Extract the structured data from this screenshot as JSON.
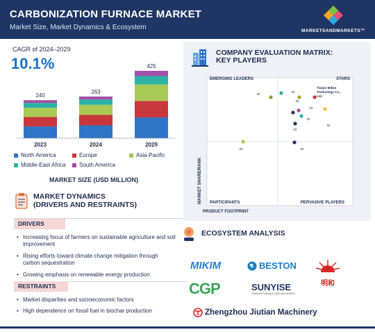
{
  "header": {
    "title": "CARBONIZATION FURNACE MARKET",
    "subtitle": "Market Size, Market Dynamics & Ecosystem",
    "logo_text": "MARKETSANDMARKETS™"
  },
  "cagr": {
    "label": "CAGR of 2024–2029",
    "value": "10.1%"
  },
  "chart_data": {
    "type": "bar",
    "stacked": true,
    "categories": [
      "2023",
      "2024",
      "2029"
    ],
    "totals": [
      240,
      263,
      425
    ],
    "series": [
      {
        "name": "North America",
        "color": "#2e75c6",
        "values": [
          74,
          81,
          131
        ]
      },
      {
        "name": "Europe",
        "color": "#c8373c",
        "values": [
          60,
          66,
          104
        ]
      },
      {
        "name": "Asia-Pacific",
        "color": "#a9c956",
        "values": [
          58,
          64,
          104
        ]
      },
      {
        "name": "Middle-East Africa",
        "color": "#2bb3a6",
        "values": [
          30,
          33,
          53
        ]
      },
      {
        "name": "South America",
        "color": "#a24fa8",
        "values": [
          18,
          19,
          33
        ]
      }
    ],
    "xlabel": "MARKET SIZE (USD MILLION)",
    "ylim": [
      0,
      425
    ]
  },
  "market_size_label": "MARKET SIZE (USD MILLION)",
  "dynamics": {
    "title_line1": "MARKET DYNAMICS",
    "title_line2": "(DRIVERS AND RESTRAINTS)",
    "drivers_label": "DRIVERS",
    "drivers": [
      "Increasing focus of farmers on sustainable agriculture and soil improvement",
      "Rising efforts toward climate change mitigation through carbon sequestration",
      "Growing emphasis on renewable energy production"
    ],
    "restraints_label": "RESTRAINTS",
    "restraints": [
      "Market disparities and socioeconomic factors",
      "High dependence on fossil fuel in biochar production"
    ]
  },
  "matrix": {
    "title_line1": "COMPANY EVALUATION MATRIX:",
    "title_line2": "KEY PLAYERS",
    "quadrants": {
      "top_left": "EMERGING LEADERS",
      "top_right": "STARS",
      "bottom_left": "PARTICIPANTS",
      "bottom_right": "PERVASIVE PLAYERS"
    },
    "y_axis": "MARKET SHARE/RANK",
    "x_axis": "PRODUCT FOOTPRINT",
    "highlight_company": [
      "Tianjin Mikim",
      "Technology Co.,",
      "Ltd."
    ],
    "points_label": "xx"
  },
  "ecosystem": {
    "title": "ECOSYSTEM ANALYSIS",
    "brands": [
      "MIKIM",
      "BESTON",
      "明和",
      "CGP",
      "SUNYISE",
      "Zhengzhou Jiutian Machinery"
    ],
    "sunyise_tag": "CARBON FURNACE AND MACHINERY",
    "mingyang_tag": "MINGHE"
  },
  "colors": {
    "navy": "#1f3563",
    "accent_blue": "#1a6fc4",
    "red": "#c8373c"
  }
}
